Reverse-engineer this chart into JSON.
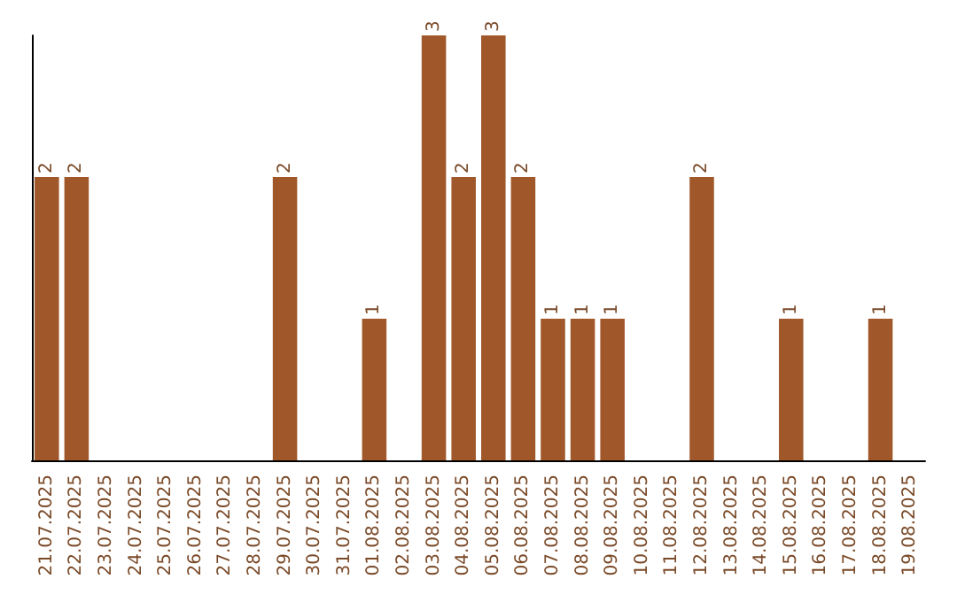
{
  "chart_data": {
    "type": "bar",
    "categories": [
      "21.07.2025",
      "22.07.2025",
      "23.07.2025",
      "24.07.2025",
      "25.07.2025",
      "26.07.2025",
      "27.07.2025",
      "28.07.2025",
      "29.07.2025",
      "30.07.2025",
      "31.07.2025",
      "01.08.2025",
      "02.08.2025",
      "03.08.2025",
      "04.08.2025",
      "05.08.2025",
      "06.08.2025",
      "07.08.2025",
      "08.08.2025",
      "09.08.2025",
      "10.08.2025",
      "11.08.2025",
      "12.08.2025",
      "13.08.2025",
      "14.08.2025",
      "15.08.2025",
      "16.08.2025",
      "17.08.2025",
      "18.08.2025",
      "19.08.2025"
    ],
    "values": [
      2,
      2,
      0,
      0,
      0,
      0,
      0,
      0,
      2,
      0,
      0,
      1,
      0,
      3,
      2,
      3,
      2,
      1,
      1,
      1,
      0,
      0,
      2,
      0,
      0,
      1,
      0,
      0,
      1,
      0
    ],
    "value_labels": [
      "2",
      "2",
      null,
      null,
      null,
      null,
      null,
      null,
      "2",
      null,
      null,
      "1",
      null,
      "3",
      "2",
      "3",
      "2",
      "1",
      "1",
      "1",
      null,
      null,
      "2",
      null,
      null,
      "1",
      null,
      null,
      "1",
      null
    ],
    "color": "#a0582a",
    "tick_labels": "x"
  }
}
